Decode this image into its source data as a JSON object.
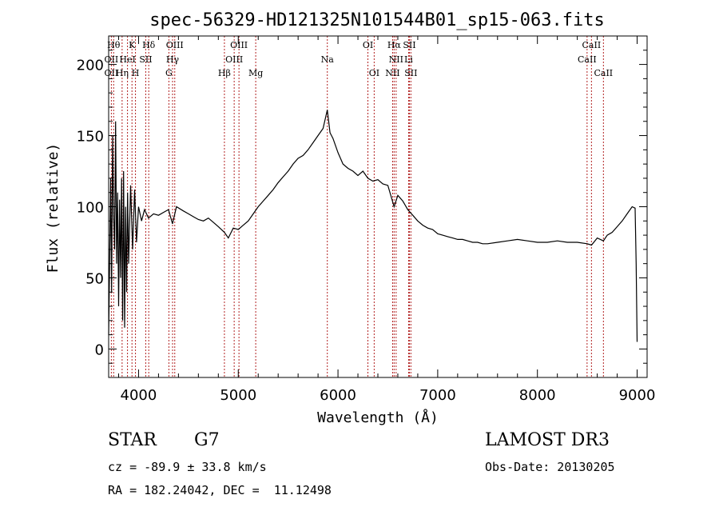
{
  "chart_data": {
    "type": "line",
    "title": "spec-56329-HD121325N101544B01_sp15-063.fits",
    "xlabel": "Wavelength (Å)",
    "ylabel": "Flux (relative)",
    "xlim": [
      3700,
      9100
    ],
    "ylim": [
      -20,
      220
    ],
    "xticks": [
      4000,
      5000,
      6000,
      7000,
      8000,
      9000
    ],
    "yticks": [
      0,
      50,
      100,
      150,
      200
    ],
    "series": [
      {
        "name": "spectrum",
        "x": [
          3700,
          3710,
          3720,
          3730,
          3740,
          3750,
          3760,
          3770,
          3780,
          3790,
          3800,
          3810,
          3820,
          3830,
          3840,
          3850,
          3860,
          3870,
          3880,
          3890,
          3900,
          3920,
          3940,
          3960,
          3980,
          4000,
          4030,
          4060,
          4100,
          4150,
          4200,
          4250,
          4300,
          4340,
          4380,
          4450,
          4500,
          4550,
          4600,
          4650,
          4700,
          4750,
          4800,
          4861,
          4900,
          4950,
          5000,
          5050,
          5100,
          5150,
          5200,
          5250,
          5300,
          5350,
          5400,
          5450,
          5500,
          5550,
          5600,
          5650,
          5700,
          5750,
          5800,
          5850,
          5893,
          5920,
          5950,
          6000,
          6050,
          6100,
          6150,
          6200,
          6250,
          6300,
          6350,
          6400,
          6450,
          6500,
          6563,
          6600,
          6650,
          6700,
          6750,
          6800,
          6850,
          6900,
          6950,
          7000,
          7050,
          7100,
          7150,
          7200,
          7250,
          7300,
          7350,
          7400,
          7450,
          7500,
          7600,
          7700,
          7800,
          7900,
          8000,
          8100,
          8200,
          8300,
          8400,
          8500,
          8542,
          8600,
          8662,
          8700,
          8750,
          8800,
          8850,
          8900,
          8950,
          8980,
          8990,
          9000
        ],
        "y": [
          10,
          60,
          120,
          40,
          150,
          95,
          70,
          160,
          60,
          110,
          30,
          105,
          50,
          120,
          20,
          125,
          15,
          100,
          40,
          110,
          60,
          115,
          70,
          112,
          75,
          100,
          90,
          98,
          92,
          95,
          94,
          96,
          98,
          88,
          100,
          97,
          95,
          93,
          91,
          90,
          92,
          89,
          86,
          82,
          78,
          85,
          84,
          87,
          90,
          95,
          100,
          104,
          108,
          112,
          117,
          121,
          125,
          130,
          134,
          136,
          140,
          145,
          150,
          155,
          168,
          152,
          148,
          138,
          130,
          127,
          125,
          122,
          125,
          120,
          118,
          119,
          116,
          115,
          100,
          108,
          104,
          98,
          94,
          90,
          87,
          85,
          84,
          81,
          80,
          79,
          78,
          77,
          77,
          76,
          75,
          75,
          74,
          74,
          75,
          76,
          77,
          76,
          75,
          75,
          76,
          75,
          75,
          74,
          73,
          78,
          76,
          80,
          82,
          86,
          90,
          95,
          100,
          99,
          60,
          5
        ]
      }
    ],
    "lines": [
      {
        "wave": 3727,
        "labels": [
          "OII"
        ]
      },
      {
        "wave": 3750,
        "labels": [
          "Hθ"
        ]
      },
      {
        "wave": 3835,
        "labels": [
          "Hη"
        ]
      },
      {
        "wave": 3889,
        "labels": [
          "HeI"
        ]
      },
      {
        "wave": 3934,
        "labels": [
          "K"
        ]
      },
      {
        "wave": 3969,
        "labels": [
          "H"
        ]
      },
      {
        "wave": 4072,
        "labels": [
          "SII"
        ]
      },
      {
        "wave": 4102,
        "labels": [
          "Hδ"
        ]
      },
      {
        "wave": 4304,
        "labels": [
          "G"
        ]
      },
      {
        "wave": 4341,
        "labels": [
          "Hγ"
        ]
      },
      {
        "wave": 4363,
        "labels": [
          "OIII"
        ]
      },
      {
        "wave": 4861,
        "labels": [
          "Hβ"
        ]
      },
      {
        "wave": 4959,
        "labels": [
          "OIII"
        ]
      },
      {
        "wave": 5007,
        "labels": [
          "OIII"
        ]
      },
      {
        "wave": 5175,
        "labels": [
          "Mg"
        ]
      },
      {
        "wave": 5893,
        "labels": [
          "Na"
        ]
      },
      {
        "wave": 6300,
        "labels": [
          "OI"
        ]
      },
      {
        "wave": 6363,
        "labels": [
          "OI"
        ]
      },
      {
        "wave": 6548,
        "labels": [
          "NII"
        ]
      },
      {
        "wave": 6563,
        "labels": [
          "Hα"
        ]
      },
      {
        "wave": 6583,
        "labels": [
          "NII"
        ]
      },
      {
        "wave": 6708,
        "labels": [
          "Li"
        ]
      },
      {
        "wave": 6716,
        "labels": [
          "SII"
        ]
      },
      {
        "wave": 6731,
        "labels": [
          "SII"
        ]
      },
      {
        "wave": 8498,
        "labels": [
          "CaII"
        ]
      },
      {
        "wave": 8542,
        "labels": [
          "CaII"
        ]
      },
      {
        "wave": 8662,
        "labels": [
          "CaII"
        ]
      }
    ],
    "line_labels": {
      "row1": [
        {
          "text": "Hθ",
          "wave": 3750
        },
        {
          "text": "K",
          "wave": 3934
        },
        {
          "text": "Hδ",
          "wave": 4102
        },
        {
          "text": "OIII",
          "wave": 4363
        },
        {
          "text": "OIII",
          "wave": 5007
        },
        {
          "text": "OI",
          "wave": 6300
        },
        {
          "text": "Hα",
          "wave": 6563
        },
        {
          "text": "SII",
          "wave": 6716
        },
        {
          "text": "CaII",
          "wave": 8542
        }
      ],
      "row2": [
        {
          "text": "OII",
          "wave": 3727
        },
        {
          "text": "HeI",
          "wave": 3889
        },
        {
          "text": "SII",
          "wave": 4072
        },
        {
          "text": "Hγ",
          "wave": 4341
        },
        {
          "text": "OIII",
          "wave": 4959
        },
        {
          "text": "Na",
          "wave": 5893
        },
        {
          "text": "NII",
          "wave": 6583
        },
        {
          "text": "Li",
          "wave": 6708
        },
        {
          "text": "CaII",
          "wave": 8498
        }
      ],
      "row3": [
        {
          "text": "OII",
          "wave": 3727
        },
        {
          "text": "Hη",
          "wave": 3835
        },
        {
          "text": "H",
          "wave": 3969
        },
        {
          "text": "G",
          "wave": 4304
        },
        {
          "text": "Hβ",
          "wave": 4861
        },
        {
          "text": "Mg",
          "wave": 5175
        },
        {
          "text": "OI",
          "wave": 6363
        },
        {
          "text": "NII",
          "wave": 6548
        },
        {
          "text": "SII",
          "wave": 6731
        },
        {
          "text": "CaII",
          "wave": 8662
        }
      ]
    }
  },
  "info": {
    "object_class": "STAR",
    "subclass": "G7",
    "survey": "LAMOST DR3",
    "cz": "cz = -89.9 ± 33.8 km/s",
    "obs_date": "Obs-Date: 20130205",
    "coords": "RA = 182.24042, DEC =  11.12498"
  }
}
